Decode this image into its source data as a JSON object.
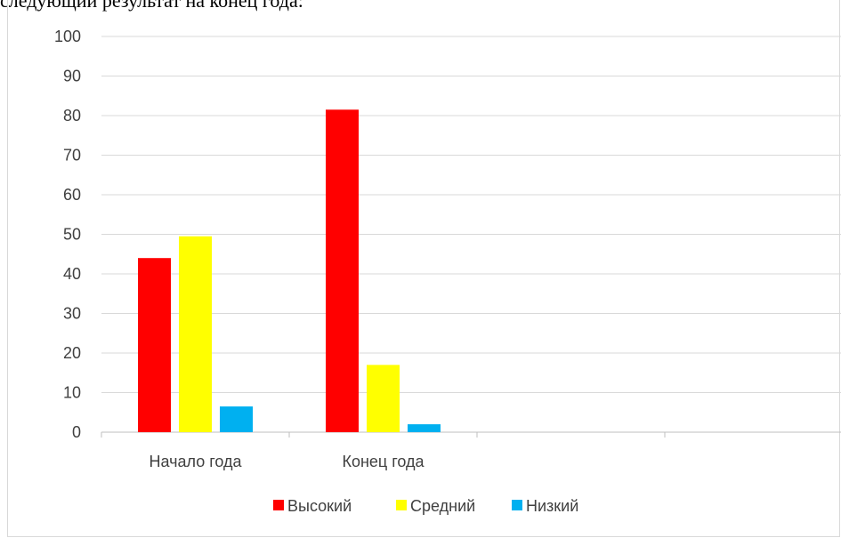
{
  "top_text": "следующий результат на конец года:",
  "chart_data": {
    "type": "bar",
    "categories": [
      "Начало года",
      "Конец года",
      "",
      ""
    ],
    "series": [
      {
        "name": "Высокий",
        "values": [
          44,
          81.5,
          null,
          null
        ],
        "color": "#ff0000"
      },
      {
        "name": "Средний",
        "values": [
          49.5,
          17,
          null,
          null
        ],
        "color": "#ffff00"
      },
      {
        "name": "Низкий",
        "values": [
          6.5,
          2,
          null,
          null
        ],
        "color": "#00b0f0"
      }
    ],
    "title": "",
    "xlabel": "",
    "ylabel": "",
    "ylim": [
      0,
      100
    ],
    "yticks": [
      0,
      10,
      20,
      30,
      40,
      50,
      60,
      70,
      80,
      90,
      100
    ],
    "grid": true,
    "legend_position": "bottom"
  }
}
